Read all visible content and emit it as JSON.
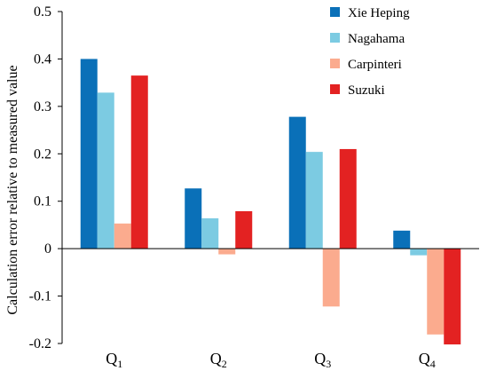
{
  "chart_data": {
    "type": "bar",
    "ylabel": "Calculation error relative to measured value",
    "ylim": [
      -0.2,
      0.5
    ],
    "yticks": [
      "-0.2",
      "-0.1",
      "0",
      "0.1",
      "0.2",
      "0.3",
      "0.4",
      "0.5"
    ],
    "categories": [
      {
        "main": "Q",
        "sub": "1"
      },
      {
        "main": "Q",
        "sub": "2"
      },
      {
        "main": "Q",
        "sub": "3"
      },
      {
        "main": "Q",
        "sub": "4"
      }
    ],
    "legend_position": "top-right",
    "series": [
      {
        "name": "Xie Heping",
        "color": "#0a70b8",
        "values": [
          0.4,
          0.127,
          0.278,
          0.038
        ]
      },
      {
        "name": "Nagahama",
        "color": "#7ccbe2",
        "values": [
          0.329,
          0.064,
          0.204,
          -0.014
        ]
      },
      {
        "name": "Carpinteri",
        "color": "#fbab8e",
        "values": [
          0.053,
          -0.012,
          -0.122,
          -0.181
        ]
      },
      {
        "name": "Suzuki",
        "color": "#e32222",
        "values": [
          0.365,
          0.079,
          0.21,
          -0.202
        ]
      }
    ]
  }
}
